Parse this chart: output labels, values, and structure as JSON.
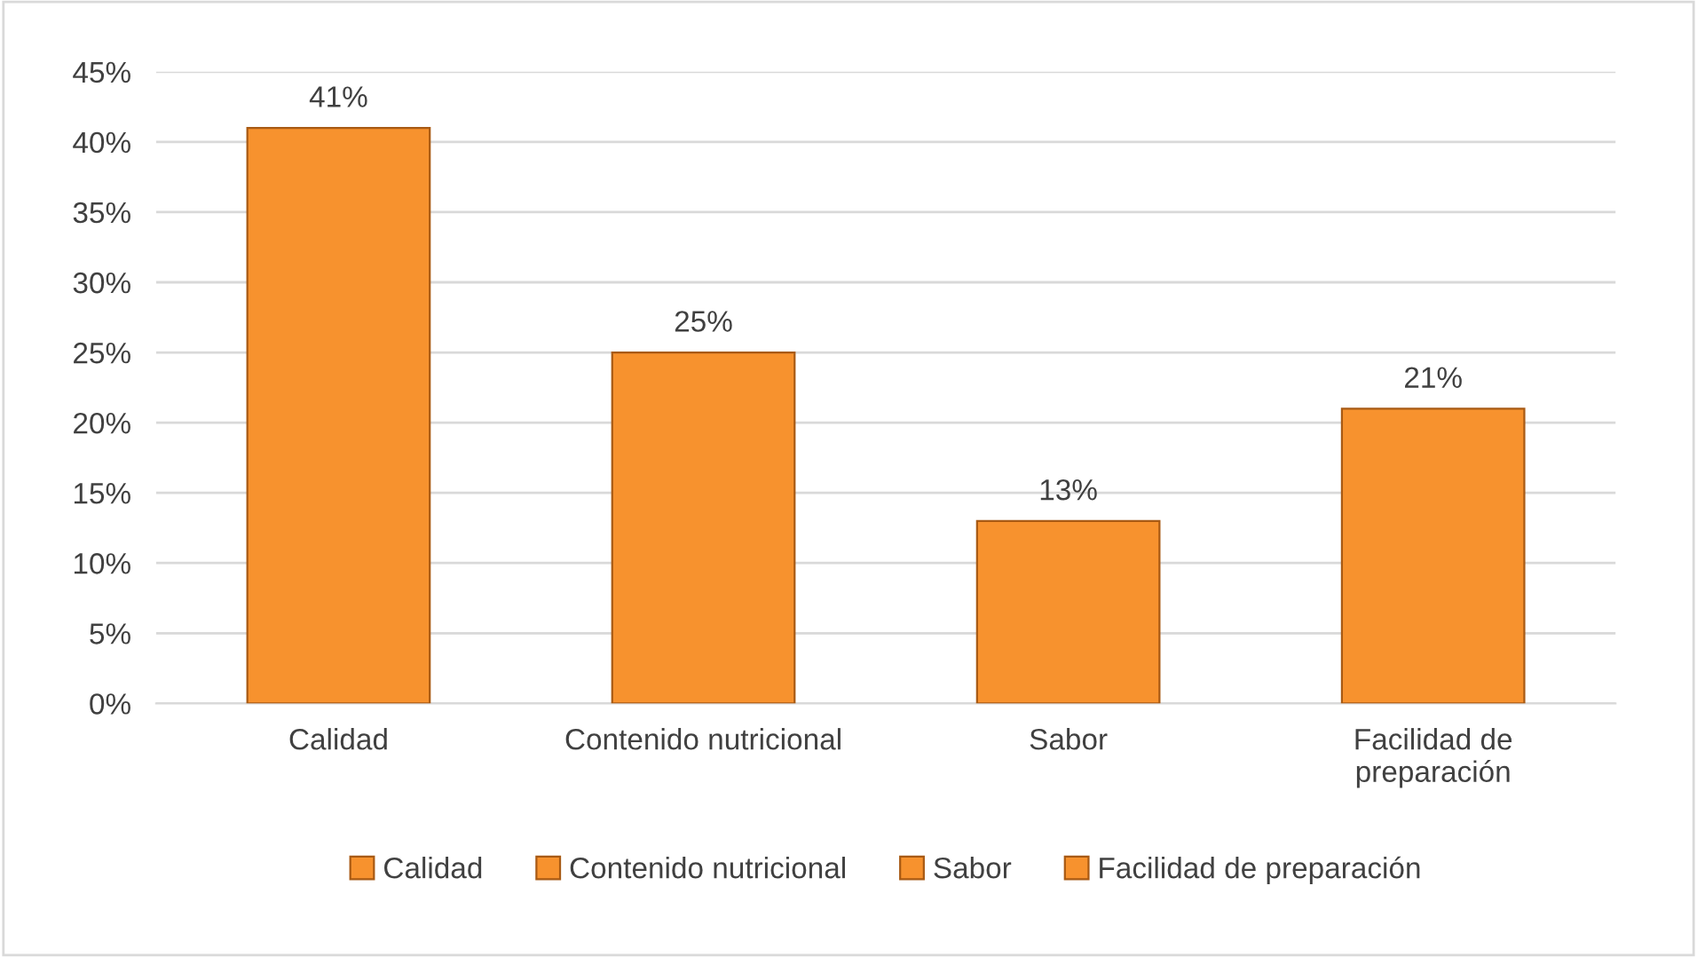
{
  "chart_data": {
    "type": "bar",
    "categories": [
      "Calidad",
      "Contenido nutricional",
      "Sabor",
      "Facilidad de preparación"
    ],
    "series": [
      {
        "name": "Calidad",
        "color": "#f7922e",
        "values": [
          41,
          null,
          null,
          null
        ],
        "value_labels": [
          "41%",
          null,
          null,
          null
        ]
      },
      {
        "name": "Contenido nutricional",
        "color": "#f7922e",
        "values": [
          null,
          25,
          null,
          null
        ],
        "value_labels": [
          null,
          "25%",
          null,
          null
        ]
      },
      {
        "name": "Sabor",
        "color": "#f7922e",
        "values": [
          null,
          null,
          13,
          null
        ],
        "value_labels": [
          null,
          null,
          "13%",
          null
        ]
      },
      {
        "name": "Facilidad de preparación",
        "color": "#f7922e",
        "values": [
          null,
          null,
          null,
          21
        ],
        "value_labels": [
          null,
          null,
          null,
          "21%"
        ]
      }
    ],
    "ylim": [
      0,
      45
    ],
    "yticks": [
      {
        "value": 0,
        "label": "0%"
      },
      {
        "value": 5,
        "label": "5%"
      },
      {
        "value": 10,
        "label": "10%"
      },
      {
        "value": 15,
        "label": "15%"
      },
      {
        "value": 20,
        "label": "20%"
      },
      {
        "value": 25,
        "label": "25%"
      },
      {
        "value": 30,
        "label": "30%"
      },
      {
        "value": 35,
        "label": "35%"
      },
      {
        "value": 40,
        "label": "40%"
      },
      {
        "value": 45,
        "label": "45%"
      }
    ],
    "grid": "y",
    "legend": "bottom"
  }
}
